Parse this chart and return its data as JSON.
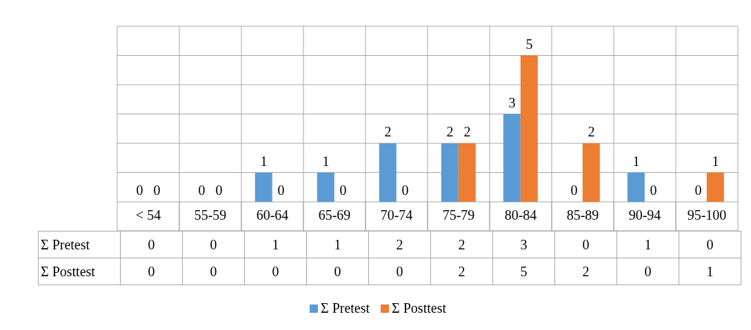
{
  "chart_data": {
    "type": "bar",
    "categories": [
      "< 54",
      "55-59",
      "60-64",
      "65-69",
      "70-74",
      "75-79",
      "80-84",
      "85-89",
      "90-94",
      "95-100"
    ],
    "series": [
      {
        "name": "Σ Pretest",
        "color": "#5b9bd5",
        "values": [
          0,
          0,
          1,
          1,
          2,
          2,
          3,
          0,
          1,
          0
        ],
        "value_labels": [
          "0",
          "0",
          "1",
          "1",
          "2",
          "2",
          "3",
          "0",
          "1",
          "0"
        ]
      },
      {
        "name": "Σ Posttest",
        "color": "#ed7d31",
        "values": [
          0,
          0,
          0,
          0,
          0,
          2,
          5,
          2,
          0,
          1
        ],
        "value_labels": [
          "0",
          "0",
          "0",
          "0",
          "0",
          "2",
          "5",
          "2",
          "0",
          "1"
        ]
      }
    ],
    "ylim": [
      0,
      6
    ],
    "annotations": [
      "0",
      "0",
      "1",
      "1",
      "2",
      "2",
      "3",
      "0",
      "1",
      "0",
      "0",
      "0",
      "0",
      "0",
      "0",
      "2",
      "5",
      "2",
      "0",
      "1"
    ],
    "tick_labels": "x",
    "grid": true,
    "legend": "bottom"
  }
}
